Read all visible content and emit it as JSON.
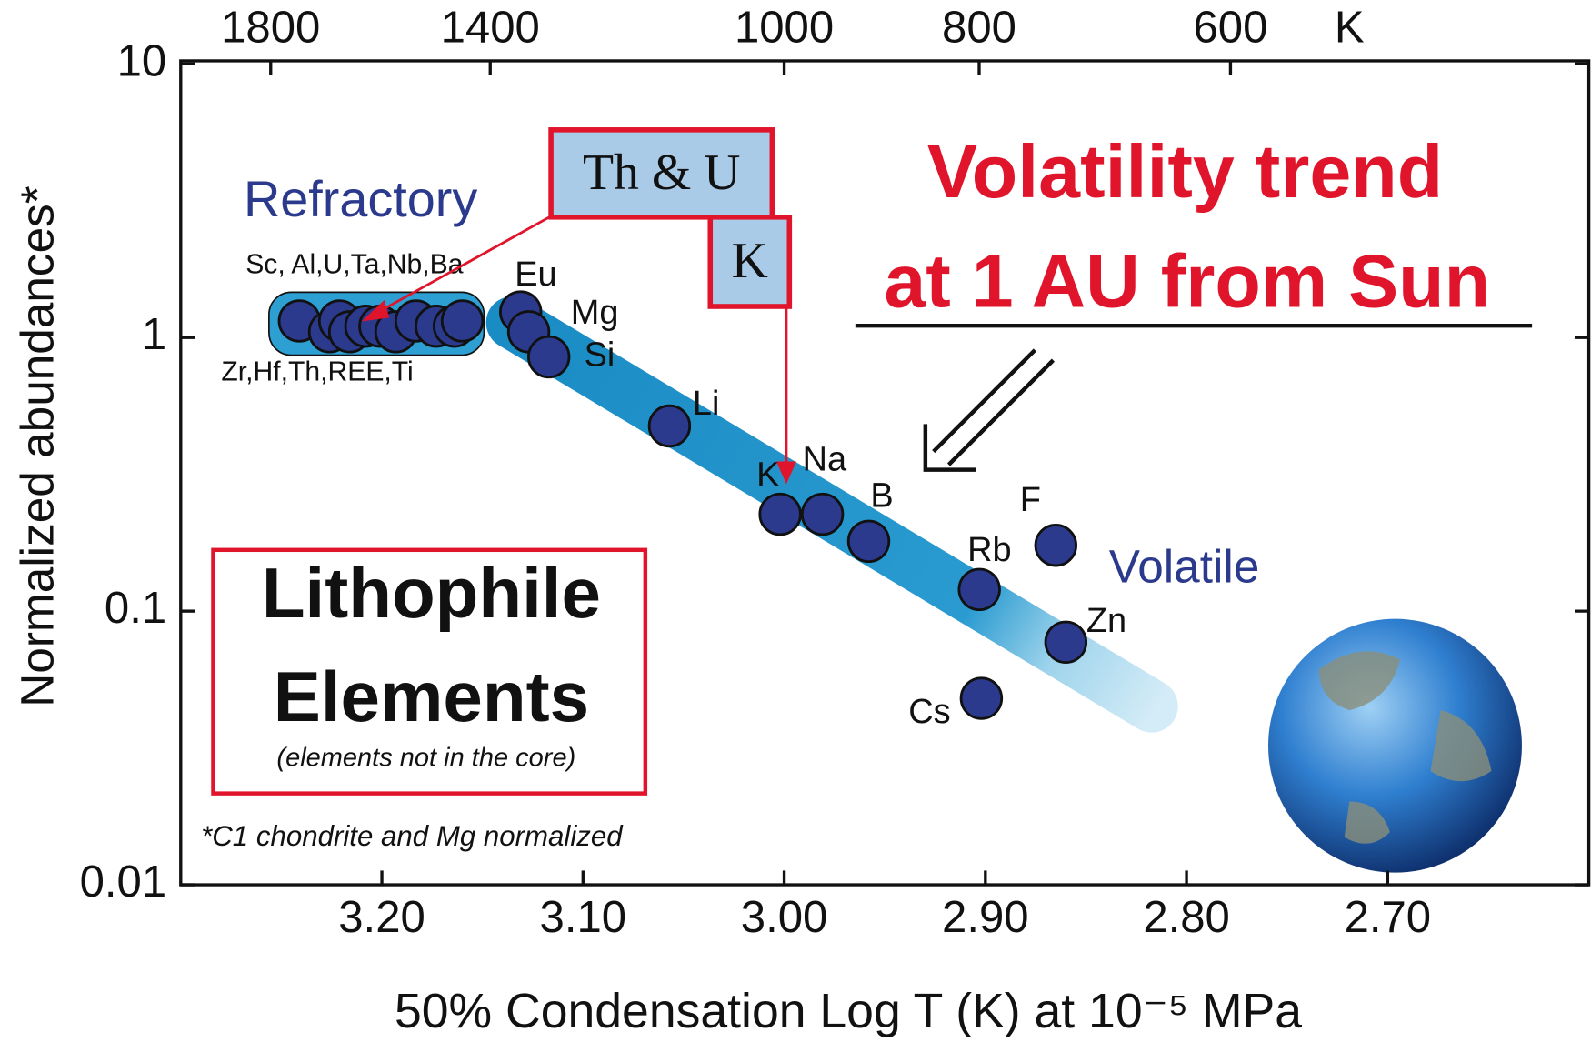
{
  "chart_data": {
    "type": "scatter",
    "x": [
      3.241,
      3.226,
      3.221,
      3.216,
      3.208,
      3.201,
      3.193,
      3.183,
      3.173,
      3.164,
      3.16,
      3.131,
      3.127,
      3.117,
      3.057,
      3.002,
      2.981,
      2.958,
      2.903,
      2.865,
      2.86,
      2.902
    ],
    "values": [
      1.15,
      1.05,
      1.15,
      1.05,
      1.1,
      1.1,
      1.05,
      1.15,
      1.1,
      1.1,
      1.15,
      1.24,
      1.05,
      0.85,
      0.475,
      0.226,
      0.226,
      0.18,
      0.12,
      0.174,
      0.077,
      0.048
    ],
    "point_labels": [
      null,
      null,
      null,
      null,
      null,
      null,
      null,
      null,
      null,
      null,
      null,
      "Eu",
      "Mg",
      "Si",
      "Li",
      "K",
      "Na",
      "B",
      "Rb",
      "F",
      "Zn",
      "Cs"
    ],
    "color": "#2b3a8c",
    "xlim": [
      3.3,
      2.6
    ],
    "xticks": [
      {
        "value": 3.2,
        "label": "3.20"
      },
      {
        "value": 3.1,
        "label": "3.10"
      },
      {
        "value": 3.0,
        "label": "3.00"
      },
      {
        "value": 2.9,
        "label": "2.90"
      },
      {
        "value": 2.8,
        "label": "2.80"
      },
      {
        "value": 2.7,
        "label": "2.70"
      }
    ],
    "ylim": [
      0.01,
      10
    ],
    "yticks": [
      0.01,
      0.1,
      1,
      10
    ],
    "log_y": true,
    "top_axis": {
      "ticks": [
        1800,
        1400,
        1000,
        800,
        600
      ],
      "unit": "K"
    },
    "x_label": "50% Condensation Log T (K) at 10⁻⁵ MPa",
    "y_label": "Normalized abundances*",
    "annotations": {
      "refractory_upper": "Sc, Al,U,Ta,Nb,Ba",
      "refractory_lower": "Zr,Hf,Th,REE,Ti",
      "refractory": "Refractory",
      "volatile": "Volatile",
      "th_u_box": "Th & U",
      "k_box": "K",
      "trend_line1": "Volatility trend",
      "trend_line2": "at 1 AU from Sun",
      "box_title1": "Lithophile",
      "box_title2": "Elements",
      "box_note": "(elements not in the core)",
      "footnote": "*C1 chondrite and Mg normalized"
    }
  }
}
